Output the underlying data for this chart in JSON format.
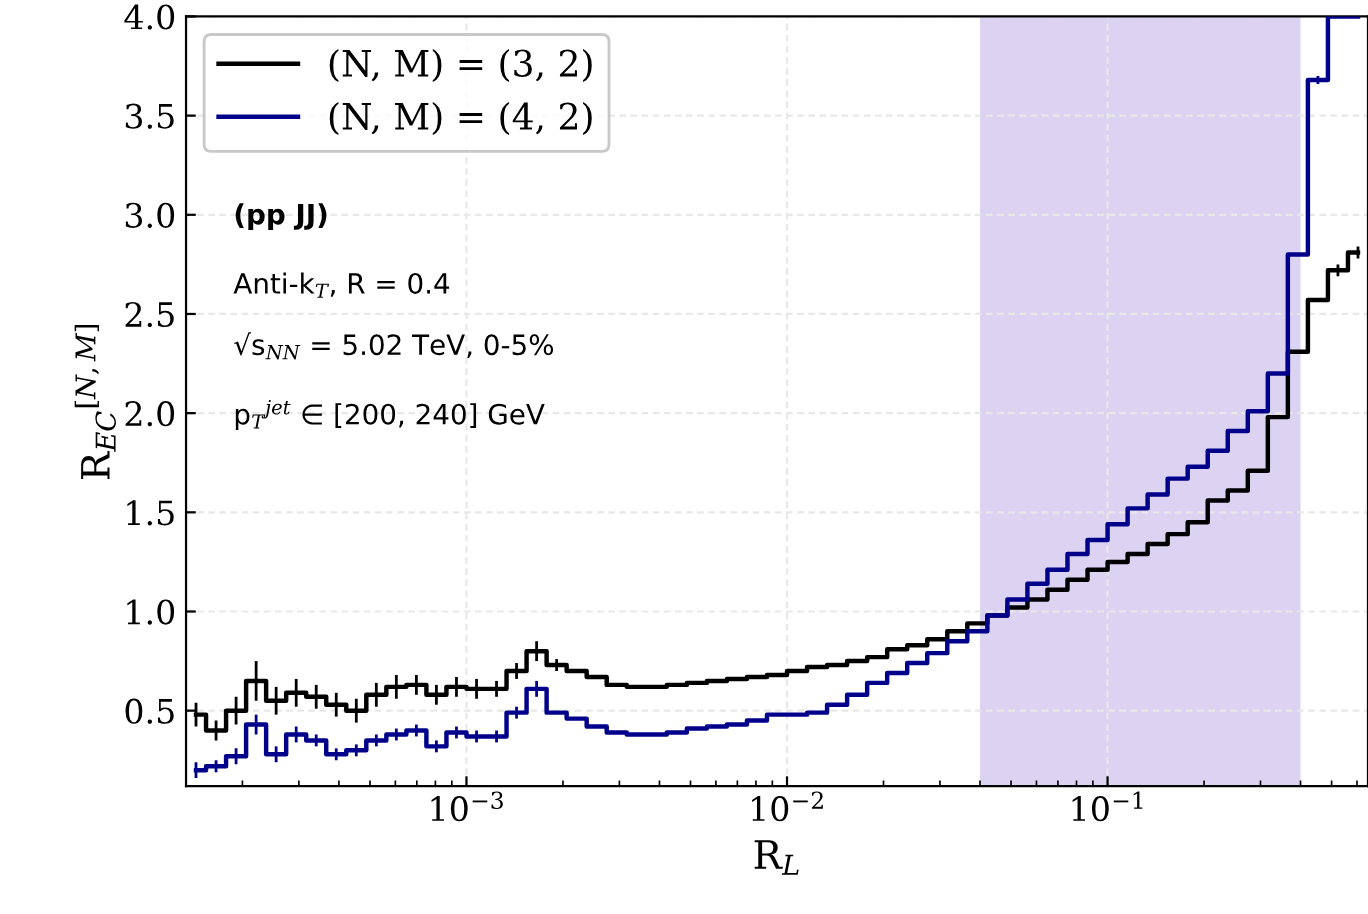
{
  "chart_data": {
    "type": "step",
    "xlabel": "R$_{L}$",
    "ylabel": "R$_{EC}$$^{[N,M]}$",
    "log": "x",
    "xlim": [
      0.0001334,
      0.6494
    ],
    "ylim": [
      0.12,
      4.0
    ],
    "xticks": [
      {
        "value": 0.001,
        "label": "10$^{−3}$"
      },
      {
        "value": 0.01,
        "label": "10$^{−2}$"
      },
      {
        "value": 0.1,
        "label": "10$^{−1}$"
      }
    ],
    "yticks": [
      0.5,
      {
        "value": 1,
        "label": "1.0"
      },
      1.5,
      {
        "value": 2,
        "label": "2.0"
      },
      2.5,
      {
        "value": 3,
        "label": "3.0"
      },
      3.5,
      {
        "value": 4,
        "label": "4.0"
      }
    ],
    "grid": true,
    "legend": "top left",
    "x": [
      0.0001433,
      0.0001655,
      0.0001911,
      0.0002207,
      0.0002548,
      0.0002943,
      0.0003398,
      0.0003924,
      0.0004532,
      0.0005233,
      0.0006043,
      0.0006978,
      0.0008058,
      0.0009306,
      0.001075,
      0.001241,
      0.001433,
      0.001655,
      0.001911,
      0.002207,
      0.002548,
      0.002943,
      0.003398,
      0.003924,
      0.004532,
      0.005233,
      0.006043,
      0.006978,
      0.008058,
      0.009306,
      0.01075,
      0.01241,
      0.01433,
      0.01655,
      0.01911,
      0.02207,
      0.02548,
      0.02943,
      0.03398,
      0.03924,
      0.04532,
      0.05233,
      0.06043,
      0.06978,
      0.08058,
      0.09306,
      0.1075,
      0.1241,
      0.1433,
      0.1655,
      0.1911,
      0.2207,
      0.2548,
      0.2943,
      0.3398,
      0.3924,
      0.4532,
      0.5233,
      0.6043
    ],
    "series": [
      {
        "name": "(N, M) = (3, 2)",
        "color": "#000000",
        "values": [
          0.48,
          0.4,
          0.5,
          0.65,
          0.55,
          0.59,
          0.57,
          0.53,
          0.5,
          0.58,
          0.62,
          0.63,
          0.58,
          0.62,
          0.61,
          0.61,
          0.7,
          0.8,
          0.73,
          0.7,
          0.67,
          0.63,
          0.62,
          0.62,
          0.63,
          0.64,
          0.65,
          0.66,
          0.67,
          0.68,
          0.7,
          0.72,
          0.73,
          0.75,
          0.77,
          0.81,
          0.83,
          0.86,
          0.9,
          0.94,
          0.98,
          1.02,
          1.06,
          1.11,
          1.16,
          1.21,
          1.25,
          1.29,
          1.34,
          1.39,
          1.45,
          1.56,
          1.61,
          1.71,
          1.98,
          2.31,
          2.57,
          2.72,
          2.81
        ],
        "errors": [
          0.06,
          0.05,
          0.07,
          0.1,
          0.07,
          0.07,
          0.06,
          0.06,
          0.06,
          0.06,
          0.06,
          0.05,
          0.05,
          0.05,
          0.05,
          0.04,
          0.04,
          0.05,
          0.03,
          null,
          null,
          null,
          null,
          null,
          null,
          null,
          null,
          null,
          null,
          null,
          null,
          null,
          null,
          null,
          null,
          null,
          null,
          null,
          null,
          null,
          null,
          null,
          null,
          null,
          null,
          null,
          null,
          null,
          null,
          null,
          null,
          null,
          null,
          null,
          null,
          null,
          null,
          0.03,
          0.03
        ]
      },
      {
        "name": "(N, M) = (4, 2)",
        "color": "#00008b",
        "values": [
          0.2,
          0.22,
          0.27,
          0.43,
          0.28,
          0.38,
          0.35,
          0.28,
          0.3,
          0.35,
          0.38,
          0.4,
          0.32,
          0.39,
          0.37,
          0.37,
          0.49,
          0.61,
          0.49,
          0.46,
          0.42,
          0.39,
          0.38,
          0.38,
          0.39,
          0.41,
          0.42,
          0.43,
          0.45,
          0.48,
          0.48,
          0.49,
          0.53,
          0.58,
          0.64,
          0.69,
          0.74,
          0.79,
          0.85,
          0.9,
          0.98,
          1.06,
          1.14,
          1.21,
          1.29,
          1.36,
          1.44,
          1.52,
          1.59,
          1.67,
          1.73,
          1.81,
          1.91,
          2.01,
          2.2,
          2.8,
          3.68,
          4.0,
          4.0
        ],
        "errors": [
          0.04,
          0.03,
          0.04,
          0.05,
          0.04,
          0.04,
          0.03,
          0.03,
          0.03,
          0.03,
          0.03,
          0.03,
          0.03,
          0.03,
          0.03,
          0.03,
          0.03,
          0.04,
          null,
          null,
          null,
          null,
          null,
          null,
          null,
          null,
          null,
          null,
          null,
          null,
          null,
          null,
          null,
          null,
          null,
          null,
          null,
          null,
          null,
          null,
          null,
          null,
          null,
          null,
          null,
          null,
          null,
          null,
          null,
          null,
          null,
          null,
          null,
          null,
          null,
          null,
          0.02,
          null,
          null
        ]
      }
    ],
    "bands": [
      {
        "axis": "x",
        "from": 0.04,
        "to": 0.4,
        "color": "#dcd3f2"
      }
    ],
    "annotations": [
      "(pp JJ)",
      "Anti-k$_{T}$, R = 0.4",
      "√s$_{NN}$ = 5.02 TeV, 0-5%",
      "p$_{T}$$^{jet}$ ∈ [200, 240] GeV"
    ]
  }
}
